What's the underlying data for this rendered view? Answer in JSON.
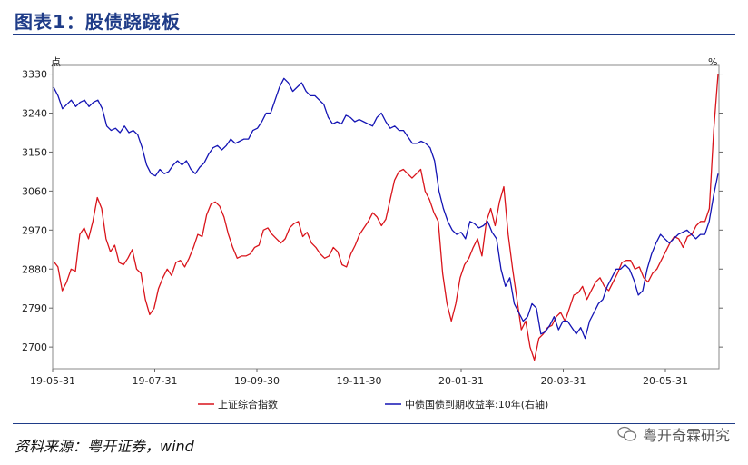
{
  "header": {
    "title": "图表1：股债跷跷板"
  },
  "footer": {
    "source": "资料来源：粤开证券，wind",
    "watermark": "粤开奇霖研究"
  },
  "chart_data": {
    "type": "line",
    "left_axis_unit": "点",
    "right_axis_unit": "%",
    "left_ticks": [
      3330,
      3240,
      3150,
      3060,
      2970,
      2880,
      2790,
      2700
    ],
    "ylim_left": [
      2650,
      3350
    ],
    "x_ticks": [
      "19-05-31",
      "19-07-31",
      "19-09-30",
      "19-11-30",
      "20-01-31",
      "20-03-31",
      "20-05-31"
    ],
    "series": [
      {
        "name": "上证综合指数",
        "color": "#d9141b",
        "values": [
          2898,
          2885,
          2830,
          2850,
          2880,
          2875,
          2960,
          2975,
          2950,
          2990,
          3045,
          3020,
          2950,
          2920,
          2935,
          2895,
          2890,
          2905,
          2925,
          2880,
          2870,
          2810,
          2775,
          2790,
          2835,
          2860,
          2880,
          2865,
          2895,
          2900,
          2885,
          2905,
          2930,
          2960,
          2955,
          3005,
          3030,
          3035,
          3025,
          3000,
          2960,
          2930,
          2905,
          2910,
          2910,
          2915,
          2930,
          2935,
          2970,
          2975,
          2960,
          2950,
          2940,
          2950,
          2975,
          2985,
          2990,
          2955,
          2965,
          2940,
          2930,
          2915,
          2905,
          2910,
          2930,
          2920,
          2890,
          2885,
          2915,
          2935,
          2960,
          2975,
          2990,
          3010,
          3000,
          2980,
          2995,
          3040,
          3085,
          3105,
          3110,
          3100,
          3090,
          3100,
          3110,
          3060,
          3040,
          3010,
          2990,
          2870,
          2800,
          2760,
          2800,
          2860,
          2890,
          2905,
          2930,
          2950,
          2910,
          2990,
          3020,
          2980,
          3035,
          3070,
          2960,
          2880,
          2810,
          2740,
          2760,
          2700,
          2670,
          2720,
          2730,
          2745,
          2750,
          2770,
          2780,
          2760,
          2790,
          2820,
          2825,
          2840,
          2810,
          2830,
          2850,
          2860,
          2840,
          2830,
          2850,
          2870,
          2895,
          2900,
          2900,
          2880,
          2885,
          2860,
          2850,
          2870,
          2880,
          2900,
          2920,
          2940,
          2955,
          2950,
          2930,
          2955,
          2960,
          2980,
          2990,
          2990,
          3020,
          3200,
          3330
        ]
      },
      {
        "name": "中债国债到期收益率:10年(右轴)",
        "color": "#1414b4",
        "values": [
          3300,
          3280,
          3250,
          3260,
          3270,
          3255,
          3265,
          3270,
          3255,
          3265,
          3270,
          3250,
          3210,
          3200,
          3205,
          3195,
          3210,
          3195,
          3200,
          3190,
          3160,
          3120,
          3100,
          3095,
          3110,
          3100,
          3105,
          3120,
          3130,
          3120,
          3130,
          3110,
          3100,
          3115,
          3125,
          3145,
          3160,
          3165,
          3155,
          3165,
          3180,
          3170,
          3175,
          3180,
          3180,
          3200,
          3205,
          3220,
          3240,
          3240,
          3270,
          3300,
          3320,
          3310,
          3290,
          3300,
          3310,
          3290,
          3280,
          3280,
          3270,
          3260,
          3230,
          3215,
          3220,
          3215,
          3235,
          3230,
          3220,
          3225,
          3220,
          3215,
          3210,
          3230,
          3240,
          3220,
          3205,
          3210,
          3200,
          3200,
          3185,
          3170,
          3170,
          3175,
          3170,
          3160,
          3130,
          3060,
          3020,
          2990,
          2970,
          2960,
          2965,
          2950,
          2990,
          2985,
          2975,
          2980,
          2990,
          2965,
          2950,
          2880,
          2840,
          2860,
          2800,
          2780,
          2760,
          2770,
          2800,
          2790,
          2730,
          2735,
          2750,
          2770,
          2740,
          2760,
          2760,
          2745,
          2730,
          2745,
          2720,
          2760,
          2780,
          2800,
          2810,
          2840,
          2860,
          2880,
          2880,
          2890,
          2880,
          2855,
          2820,
          2830,
          2880,
          2915,
          2940,
          2960,
          2950,
          2940,
          2950,
          2960,
          2965,
          2970,
          2960,
          2950,
          2960,
          2960,
          2990,
          3050,
          3100
        ]
      }
    ]
  }
}
